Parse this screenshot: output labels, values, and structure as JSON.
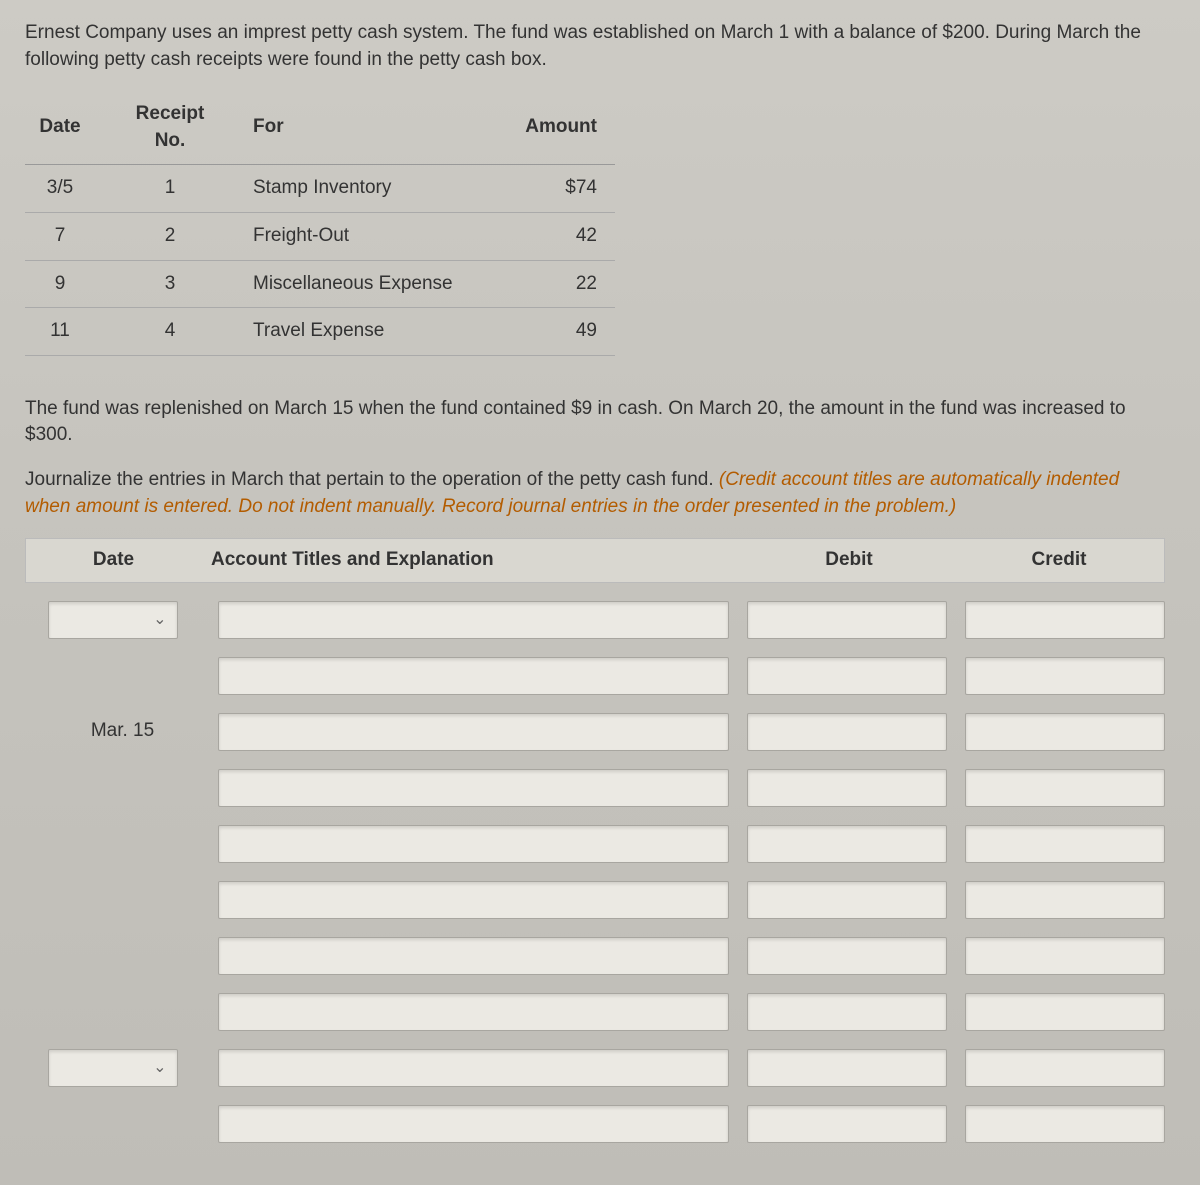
{
  "intro": "Ernest Company uses an imprest petty cash system. The fund was established on March 1 with a balance of $200. During March the following petty cash receipts were found in the petty cash box.",
  "receipts": {
    "headers": {
      "date": "Date",
      "receipt_no": "Receipt No.",
      "for": "For",
      "amount": "Amount"
    },
    "rows": [
      {
        "date": "3/5",
        "no": "1",
        "for": "Stamp Inventory",
        "amount": "$74"
      },
      {
        "date": "7",
        "no": "2",
        "for": "Freight-Out",
        "amount": "42"
      },
      {
        "date": "9",
        "no": "3",
        "for": "Miscellaneous Expense",
        "amount": "22"
      },
      {
        "date": "11",
        "no": "4",
        "for": "Travel Expense",
        "amount": "49"
      }
    ]
  },
  "para2": "The fund was replenished on March 15 when the fund contained $9 in cash. On March 20, the amount in the fund was increased to $300.",
  "instr_plain": "Journalize the entries in March that pertain to the operation of the petty cash fund. ",
  "instr_hint": "(Credit account titles are automatically indented when amount is entered. Do not indent manually. Record journal entries in the order presented in the problem.)",
  "journal": {
    "headers": {
      "date": "Date",
      "acct": "Account Titles and Explanation",
      "debit": "Debit",
      "credit": "Credit"
    },
    "fixed_date": "Mar. 15"
  },
  "colors": {
    "bg": "#c8c6c0",
    "header_row": "#d9d7d0",
    "field_bg": "#ebe9e3",
    "border": "#a8a6a0",
    "hint": "#b35c00"
  }
}
